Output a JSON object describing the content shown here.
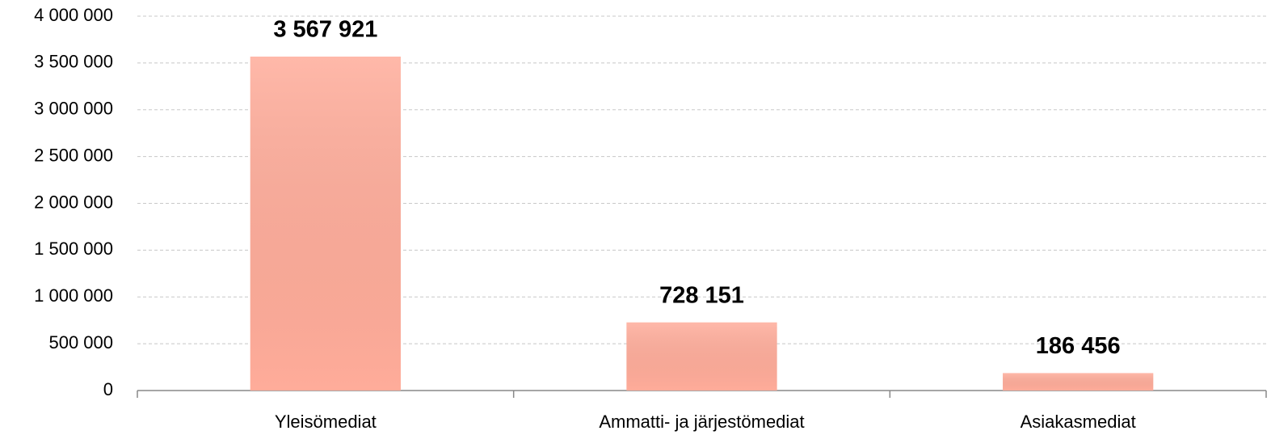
{
  "chart_data": {
    "type": "bar",
    "categories": [
      "Yleisömediat",
      "Ammatti- ja järjestömediat",
      "Asiakasmediat"
    ],
    "values": [
      3567921,
      728151,
      186456
    ],
    "value_labels": [
      "3 567 921",
      "728 151",
      "186 456"
    ],
    "color": "#ffac9a",
    "ylim": [
      0,
      4000000
    ],
    "yticks": [
      0,
      {
        "value": 500000,
        "label": "500 000"
      },
      {
        "value": 1000000,
        "label": "1 000 000"
      },
      {
        "value": 1500000,
        "label": "1 500 000"
      },
      {
        "value": 2000000,
        "label": "2 000 000"
      },
      {
        "value": 2500000,
        "label": "2 500 000"
      },
      {
        "value": 3000000,
        "label": "3 000 000"
      },
      {
        "value": 3500000,
        "label": "3 500 000"
      },
      {
        "value": 4000000,
        "label": "4 000 000"
      }
    ],
    "grid": true
  }
}
